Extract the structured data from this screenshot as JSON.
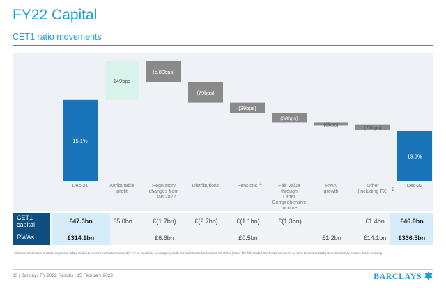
{
  "page": {
    "title": "FY22 Capital",
    "subtitle": "CET1 ratio movements"
  },
  "chart_data": {
    "type": "bar",
    "subtype": "waterfall",
    "title": "CET1 ratio movements",
    "unit": "bps",
    "categories": [
      [
        "Dec-21"
      ],
      [
        "Attributable",
        "profit"
      ],
      [
        "Regulatory",
        "changes from",
        "1 Jan 2022"
      ],
      [
        "Distributions"
      ],
      [
        "Pensions"
      ],
      [
        "Fair Value",
        "through",
        "Other",
        "Comprehensive",
        "Income"
      ],
      [
        "RWA",
        "growth"
      ],
      [
        "Other",
        "(including FX)"
      ],
      [
        "Dec-22"
      ]
    ],
    "category_superscripts": [
      "",
      "",
      "",
      "",
      "1",
      "",
      "",
      "2",
      ""
    ],
    "values_bps": [
      1510,
      149,
      -80,
      -79,
      -39,
      -38,
      -6,
      -22,
      1390
    ],
    "bar_kind": [
      "total",
      "increase",
      "decrease",
      "decrease",
      "decrease",
      "decrease",
      "decrease",
      "decrease",
      "total"
    ],
    "labels": [
      "15.1%",
      "149bps",
      "(c.80bps)",
      "(79bps)",
      "(39bps)",
      "(38bps)",
      "(6bps)",
      "(22bps)",
      "13.9%"
    ],
    "colors": {
      "total": "#1a75b8",
      "increase": "#d8f3ea",
      "decrease": "#8a8a8a",
      "label_dark": "#555555",
      "label_light": "#ffffff"
    },
    "grid": false,
    "legend": "none"
  },
  "table": {
    "rows": [
      {
        "header": [
          "CET1",
          "capital"
        ],
        "cells": [
          "£47.3bn",
          "£5.0bn",
          "£(1.7bn)",
          "£(2.7bn)",
          "£(1.1bn)",
          "£(1.3bn)",
          "",
          "£1.4bn",
          "£46.9bn"
        ]
      },
      {
        "header": [
          "RWAs"
        ],
        "cells": [
          "£314.1bn",
          "",
          "£6.6bn",
          "",
          "£0.5bn",
          "",
          "£1.2bn",
          "£14.1bn",
          "£336.5bn"
        ]
      }
    ]
  },
  "footnote": "¹ Includes acceleration of capital impacts of 33bps related to pension transactions unwind | ² FX on credit risk, counterparty credit risk and standardised market risk RWAs | Note: The fully loaded CET1 ratio was 13.7% as at 31 December 2022 | Note: Charts may not sum due to rounding |",
  "footer": {
    "text": "33 | Barclays FY 2022 Results | 15 February 2023",
    "logo_text": "BARCLAYS"
  }
}
